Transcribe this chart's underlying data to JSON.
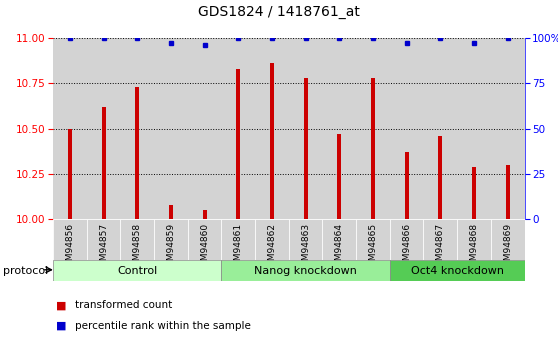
{
  "title": "GDS1824 / 1418761_at",
  "samples": [
    "GSM94856",
    "GSM94857",
    "GSM94858",
    "GSM94859",
    "GSM94860",
    "GSM94861",
    "GSM94862",
    "GSM94863",
    "GSM94864",
    "GSM94865",
    "GSM94866",
    "GSM94867",
    "GSM94868",
    "GSM94869"
  ],
  "bar_values": [
    10.5,
    10.62,
    10.73,
    10.08,
    10.05,
    10.83,
    10.86,
    10.78,
    10.47,
    10.78,
    10.37,
    10.46,
    10.29,
    10.3
  ],
  "percentile_values": [
    100,
    100,
    100,
    97,
    96,
    100,
    100,
    100,
    100,
    100,
    97,
    100,
    97,
    100
  ],
  "bar_color": "#CC0000",
  "dot_color": "#0000CC",
  "ymin": 10,
  "ymax": 11,
  "yticks_left": [
    10,
    10.25,
    10.5,
    10.75,
    11
  ],
  "yticks_right": [
    0,
    25,
    50,
    75,
    100
  ],
  "group_colors": [
    "#ccffcc",
    "#99ee99",
    "#66dd66"
  ],
  "groups": [
    {
      "label": "Control",
      "start": 0,
      "end": 5
    },
    {
      "label": "Nanog knockdown",
      "start": 5,
      "end": 10
    },
    {
      "label": "Oct4 knockdown",
      "start": 10,
      "end": 14
    }
  ],
  "legend_bar_label": "transformed count",
  "legend_dot_label": "percentile rank within the sample",
  "protocol_label": "protocol",
  "col_bg_color": "#d3d3d3",
  "plot_bg_color": "#ffffff"
}
